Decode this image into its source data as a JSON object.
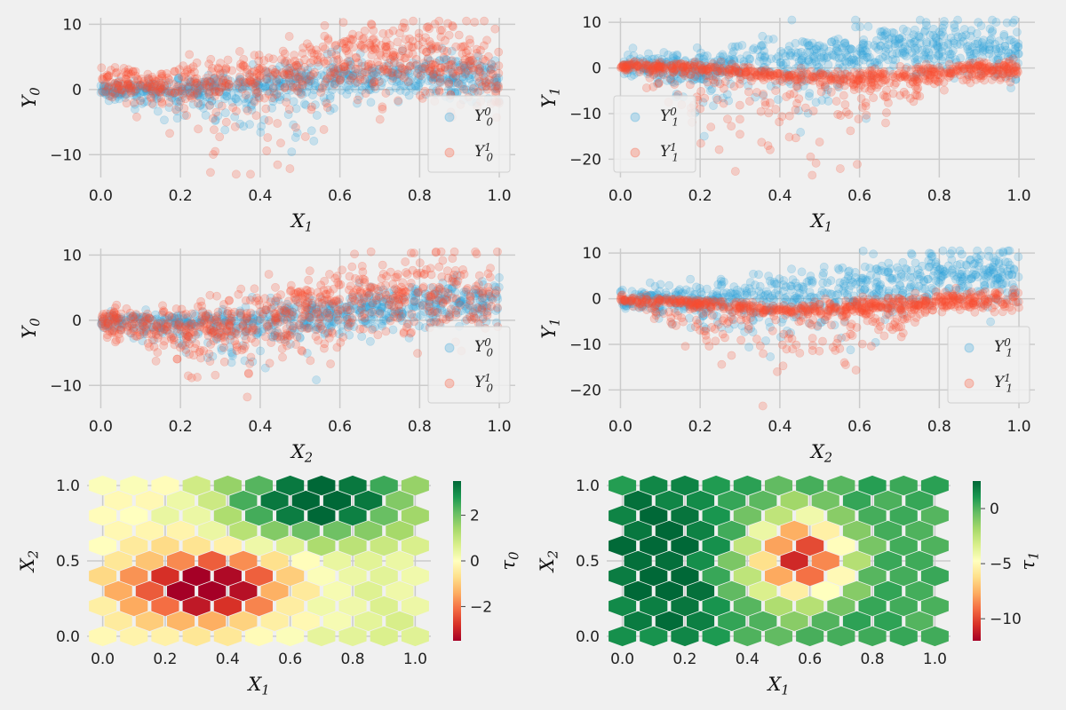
{
  "colors": {
    "y0": "#30a2da",
    "y1": "#fc4f30",
    "background": "#f0f0f0",
    "grid": "#cbcbcb"
  },
  "chart_data": [
    {
      "id": "scatter-y0-x1",
      "type": "scatter",
      "xlabel_var": "X",
      "xlabel_sub": "1",
      "ylabel_var": "Y",
      "ylabel_sub": "0",
      "xlim": [
        -0.03,
        1.04
      ],
      "ylim": [
        -13.5,
        11
      ],
      "xticks": [
        0.0,
        0.2,
        0.4,
        0.6,
        0.8,
        1.0
      ],
      "xtick_labels": [
        "0.0",
        "0.2",
        "0.4",
        "0.6",
        "0.8",
        "1.0"
      ],
      "yticks": [
        -10,
        0,
        10
      ],
      "ytick_labels": [
        "−10",
        "0",
        "10"
      ],
      "legend_position": "lower-right",
      "series": [
        {
          "name_var": "Y",
          "name_sub": "0",
          "name_sup": "0",
          "color": "#30a2da",
          "trend": [
            [
              0.0,
              0
            ],
            [
              0.2,
              0
            ],
            [
              0.4,
              1
            ],
            [
              0.6,
              2
            ],
            [
              0.8,
              2.5
            ],
            [
              1.0,
              1.5
            ]
          ],
          "spread": 1.5,
          "neg_spread": 4,
          "n": 700
        },
        {
          "name_var": "Y",
          "name_sub": "0",
          "name_sup": "1",
          "color": "#fc4f30",
          "trend": [
            [
              0.0,
              1.5
            ],
            [
              0.2,
              1
            ],
            [
              0.4,
              2
            ],
            [
              0.6,
              5
            ],
            [
              0.8,
              5.5
            ],
            [
              1.0,
              2.5
            ]
          ],
          "spread": 3,
          "neg_spread": 6,
          "n": 700
        }
      ]
    },
    {
      "id": "scatter-y1-x1",
      "type": "scatter",
      "xlabel_var": "X",
      "xlabel_sub": "1",
      "ylabel_var": "Y",
      "ylabel_sub": "1",
      "xlim": [
        -0.03,
        1.04
      ],
      "ylim": [
        -24,
        11
      ],
      "xticks": [
        0.0,
        0.2,
        0.4,
        0.6,
        0.8,
        1.0
      ],
      "xtick_labels": [
        "0.0",
        "0.2",
        "0.4",
        "0.6",
        "0.8",
        "1.0"
      ],
      "yticks": [
        -20,
        -10,
        0,
        10
      ],
      "ytick_labels": [
        "−20",
        "−10",
        "0",
        "10"
      ],
      "legend_position": "lower-left",
      "series": [
        {
          "name_var": "Y",
          "name_sub": "1",
          "name_sup": "0",
          "color": "#30a2da",
          "trend": [
            [
              0.0,
              1
            ],
            [
              0.2,
              0
            ],
            [
              0.4,
              2
            ],
            [
              0.6,
              4
            ],
            [
              0.8,
              5
            ],
            [
              1.0,
              3
            ]
          ],
          "spread": 3,
          "neg_spread": 6,
          "n": 700
        },
        {
          "name_var": "Y",
          "name_sub": "1",
          "name_sup": "1",
          "color": "#fc4f30",
          "trend": [
            [
              0.0,
              0.5
            ],
            [
              0.2,
              0
            ],
            [
              0.4,
              -1.5
            ],
            [
              0.6,
              -2.5
            ],
            [
              0.8,
              -1
            ],
            [
              1.0,
              0
            ]
          ],
          "spread": 1,
          "neg_spread": 9,
          "n": 700
        }
      ]
    },
    {
      "id": "scatter-y0-x2",
      "type": "scatter",
      "xlabel_var": "X",
      "xlabel_sub": "2",
      "ylabel_var": "Y",
      "ylabel_sub": "0",
      "xlim": [
        -0.03,
        1.04
      ],
      "ylim": [
        -13.5,
        11
      ],
      "xticks": [
        0.0,
        0.2,
        0.4,
        0.6,
        0.8,
        1.0
      ],
      "xtick_labels": [
        "0.0",
        "0.2",
        "0.4",
        "0.6",
        "0.8",
        "1.0"
      ],
      "yticks": [
        -10,
        0,
        10
      ],
      "ytick_labels": [
        "−10",
        "0",
        "10"
      ],
      "legend_position": "lower-right",
      "series": [
        {
          "name_var": "Y",
          "name_sub": "0",
          "name_sup": "0",
          "color": "#30a2da",
          "trend": [
            [
              0.0,
              0
            ],
            [
              0.2,
              -0.5
            ],
            [
              0.4,
              0
            ],
            [
              0.6,
              1.5
            ],
            [
              0.8,
              2.5
            ],
            [
              1.0,
              2.5
            ]
          ],
          "spread": 1.5,
          "neg_spread": 3,
          "n": 700
        },
        {
          "name_var": "Y",
          "name_sub": "0",
          "name_sup": "1",
          "color": "#fc4f30",
          "trend": [
            [
              0.0,
              0
            ],
            [
              0.2,
              -1
            ],
            [
              0.4,
              1
            ],
            [
              0.6,
              3.5
            ],
            [
              0.8,
              4.5
            ],
            [
              1.0,
              4
            ]
          ],
          "spread": 3,
          "neg_spread": 5,
          "n": 700
        }
      ]
    },
    {
      "id": "scatter-y1-x2",
      "type": "scatter",
      "xlabel_var": "X",
      "xlabel_sub": "2",
      "ylabel_var": "Y",
      "ylabel_sub": "1",
      "xlim": [
        -0.03,
        1.04
      ],
      "ylim": [
        -24,
        11
      ],
      "xticks": [
        0.0,
        0.2,
        0.4,
        0.6,
        0.8,
        1.0
      ],
      "xtick_labels": [
        "0.0",
        "0.2",
        "0.4",
        "0.6",
        "0.8",
        "1.0"
      ],
      "yticks": [
        -20,
        -10,
        0,
        10
      ],
      "ytick_labels": [
        "−20",
        "−10",
        "0",
        "10"
      ],
      "legend_position": "lower-right",
      "series": [
        {
          "name_var": "Y",
          "name_sub": "1",
          "name_sup": "0",
          "color": "#30a2da",
          "trend": [
            [
              0.0,
              0
            ],
            [
              0.2,
              0
            ],
            [
              0.4,
              1
            ],
            [
              0.6,
              3.5
            ],
            [
              0.8,
              5
            ],
            [
              1.0,
              5
            ]
          ],
          "spread": 3,
          "neg_spread": 6,
          "n": 700
        },
        {
          "name_var": "Y",
          "name_sub": "1",
          "name_sup": "1",
          "color": "#fc4f30",
          "trend": [
            [
              0.0,
              0
            ],
            [
              0.2,
              -1
            ],
            [
              0.4,
              -2.5
            ],
            [
              0.6,
              -2
            ],
            [
              0.8,
              -0.5
            ],
            [
              1.0,
              0
            ]
          ],
          "spread": 1,
          "neg_spread": 8,
          "n": 700
        }
      ]
    },
    {
      "id": "hexbin-tau0",
      "type": "heatmap",
      "xlabel_var": "X",
      "xlabel_sub": "1",
      "ylabel_var": "X",
      "ylabel_sub": "2",
      "cbar_label_var": "τ",
      "cbar_label_sub": "0",
      "xlim": [
        -0.05,
        1.05
      ],
      "ylim": [
        -0.03,
        1.03
      ],
      "xticks": [
        0.0,
        0.2,
        0.4,
        0.6,
        0.8,
        1.0
      ],
      "xtick_labels": [
        "0.0",
        "0.2",
        "0.4",
        "0.6",
        "0.8",
        "1.0"
      ],
      "yticks": [
        0.0,
        0.5,
        1.0
      ],
      "ytick_labels": [
        "0.0",
        "0.5",
        "1.0"
      ],
      "color_range": [
        -3.5,
        3.5
      ],
      "colormap": "RdYlGn",
      "cbar_ticks": [
        -2,
        0,
        2
      ],
      "cbar_tick_labels": [
        "−2",
        "0",
        "2"
      ],
      "field": {
        "base": 0.2,
        "terms": [
          {
            "amp": 4.2,
            "cx": 0.33,
            "cy": 0.33,
            "sx": 0.17,
            "sy": 0.16,
            "sign": -1
          },
          {
            "amp": 3.8,
            "cx": 0.68,
            "cy": 0.9,
            "sx": 0.2,
            "sy": 0.18,
            "sign": 1
          }
        ],
        "x_slope": 0.6
      }
    },
    {
      "id": "hexbin-tau1",
      "type": "heatmap",
      "xlabel_var": "X",
      "xlabel_sub": "1",
      "ylabel_var": "X",
      "ylabel_sub": "2",
      "cbar_label_var": "τ",
      "cbar_label_sub": "1",
      "xlim": [
        -0.05,
        1.05
      ],
      "ylim": [
        -0.03,
        1.03
      ],
      "xticks": [
        0.0,
        0.2,
        0.4,
        0.6,
        0.8,
        1.0
      ],
      "xtick_labels": [
        "0.0",
        "0.2",
        "0.4",
        "0.6",
        "0.8",
        "1.0"
      ],
      "yticks": [
        0.0,
        0.5,
        1.0
      ],
      "ytick_labels": [
        "0.0",
        "0.5",
        "1.0"
      ],
      "color_range": [
        -12,
        2.5
      ],
      "colormap": "RdYlGn",
      "cbar_ticks": [
        -10,
        -5,
        0
      ],
      "cbar_tick_labels": [
        "−10",
        "−5",
        "0"
      ],
      "field": {
        "base": 0.5,
        "terms": [
          {
            "amp": 12,
            "cx": 0.57,
            "cy": 0.52,
            "sx": 0.11,
            "sy": 0.2,
            "sign": -1
          },
          {
            "amp": 2.5,
            "cx": 0.1,
            "cy": 0.5,
            "sx": 0.15,
            "sy": 0.4,
            "sign": 1
          }
        ],
        "x_slope": 0
      }
    }
  ]
}
